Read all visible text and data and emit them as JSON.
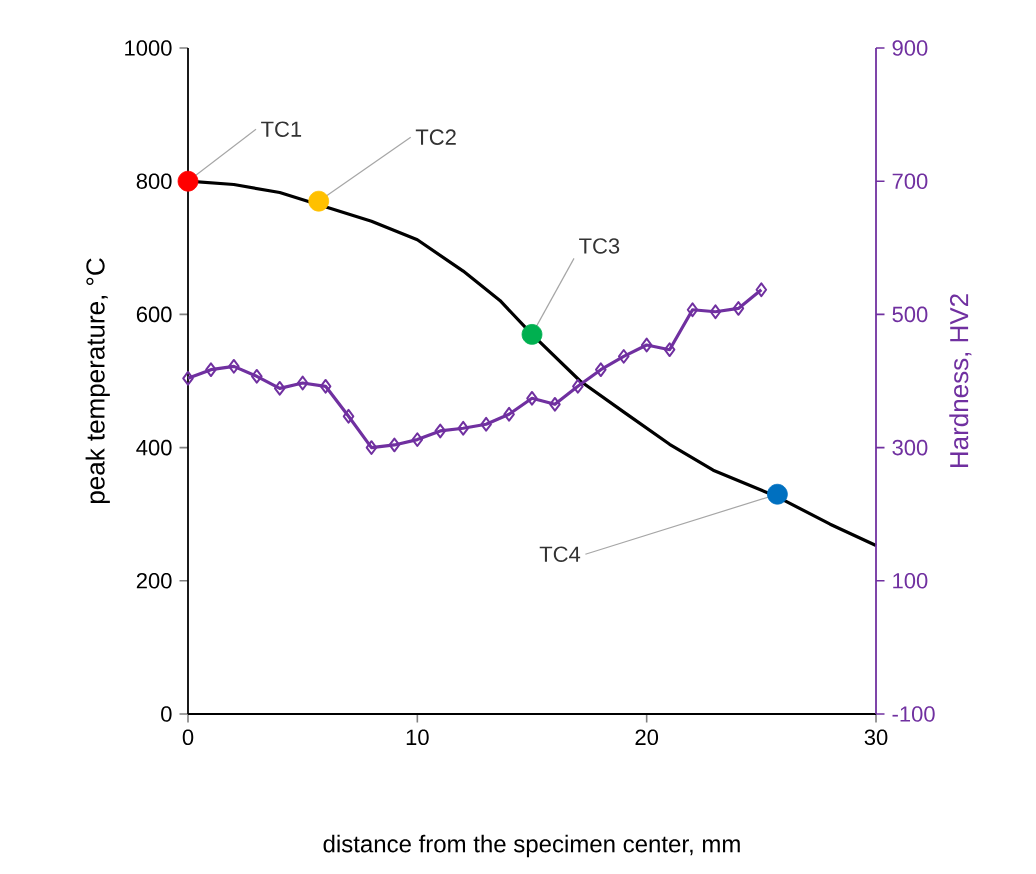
{
  "chart_data": {
    "type": "line",
    "xlabel": "distance from the specimen center, mm",
    "ylabel": "peak temperature, °C",
    "y2label": "Hardness, HV2",
    "xlim": [
      0,
      30
    ],
    "xticks": [
      0,
      10,
      20,
      30
    ],
    "ylim": [
      0,
      1000
    ],
    "yticks": [
      0,
      200,
      400,
      600,
      800,
      1000
    ],
    "y2lim": [
      -100,
      900
    ],
    "y2ticks": [
      -100,
      100,
      300,
      500,
      700,
      900
    ],
    "grid": false,
    "series": [
      {
        "color": "#000000",
        "marker": "none",
        "x": [
          0,
          2,
          4,
          8,
          10,
          12,
          13.6,
          15,
          17.1,
          19.1,
          21,
          22.9,
          25.7,
          28,
          30
        ],
        "values": [
          800,
          795,
          783,
          740,
          712,
          665,
          621,
          570,
          500,
          451,
          405,
          366,
          326,
          285,
          253
        ]
      },
      {
        "type": "scatter",
        "marker": "circle",
        "colors": [
          "#ff0000",
          "#ffc000",
          "#00b050",
          "#0070c0"
        ],
        "x": [
          0,
          5.7,
          15,
          25.7
        ],
        "values": [
          800,
          770,
          570,
          330
        ]
      },
      {
        "axis": "y2",
        "color": "#7030a0",
        "marker": "diamond",
        "x": [
          0,
          1,
          2,
          3,
          4,
          5,
          6,
          7,
          8,
          9,
          10,
          11,
          12,
          13,
          14,
          15,
          16,
          17,
          18,
          19,
          20,
          21,
          22,
          23,
          24,
          25
        ],
        "values": [
          404,
          417,
          422,
          407,
          389,
          397,
          392,
          347,
          300,
          304,
          312,
          325,
          329,
          335,
          350,
          374,
          365,
          392,
          417,
          437,
          454,
          447,
          507,
          504,
          509,
          537
        ]
      }
    ],
    "annotations": [
      {
        "text": "TC1",
        "x": 0,
        "y": 800
      },
      {
        "text": "TC2",
        "x": 5.7,
        "y": 770
      },
      {
        "text": "TC3",
        "x": 15,
        "y": 570
      },
      {
        "text": "TC4",
        "x": 25.7,
        "y": 330
      }
    ]
  }
}
